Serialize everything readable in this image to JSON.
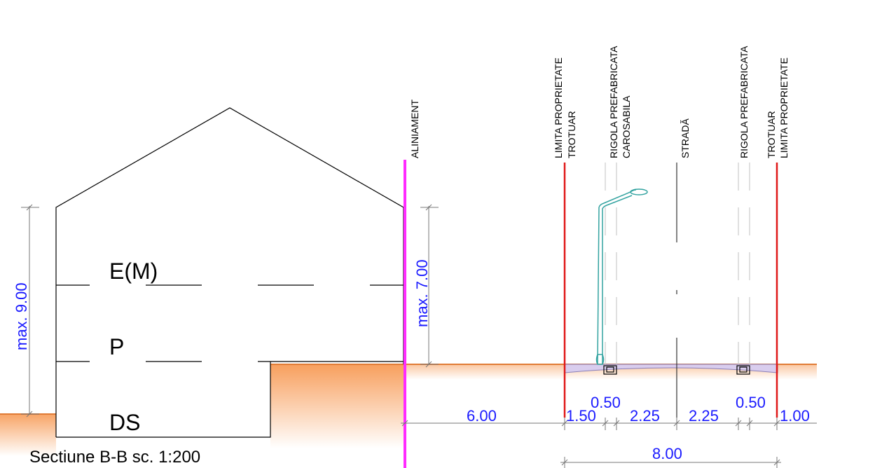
{
  "title": "Sectiune B-B sc. 1:200",
  "floors": {
    "roof": "E(M)",
    "ground": "P",
    "basement": "DS"
  },
  "heights": {
    "building_max": "max. 9.00",
    "alignment_max": "max. 7.00"
  },
  "street_labels": {
    "aliniament": "ALINIAMENT",
    "left_limit": "LIMITA PROPRIETATE",
    "left_trotuar": "TROTUAR",
    "left_rigola": "RIGOLA PREFABRICATA",
    "carosabila": "CAROSABILA",
    "strada": "STRADĂ",
    "right_rigola": "RIGOLA PREFABRICATA",
    "right_trotuar": "TROTUAR",
    "right_limit": "LIMITA PROPRIETATE"
  },
  "dimensions": {
    "setback": "6.00",
    "left_sidewalk": "1.50",
    "left_gutter": "0.50",
    "lane_left": "2.25",
    "lane_right": "2.25",
    "right_gutter": "0.50",
    "right_sidewalk": "1.00",
    "street_width": "8.00"
  },
  "colors": {
    "ground": "#f79a55",
    "alignment_line": "#ff2bff",
    "property_limit": "#e01818",
    "street_surface": "#d9cdee",
    "lamp": "#33a3a0",
    "dimension_text": "#1a1aff"
  }
}
